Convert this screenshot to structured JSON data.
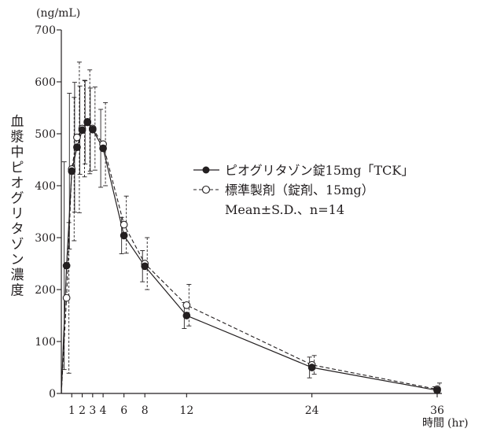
{
  "chart_data": {
    "type": "line",
    "ylabel": "血漿中ピオグリタゾン濃度",
    "y_unit": "(ng/mL)",
    "xlabel": "時間",
    "x_unit": "(hr)",
    "xlim": [
      0,
      36
    ],
    "ylim": [
      0,
      700
    ],
    "x_ticks": [
      1,
      2,
      3,
      4,
      6,
      8,
      12,
      24,
      36
    ],
    "y_ticks": [
      0,
      100,
      200,
      300,
      400,
      500,
      600,
      700
    ],
    "grid": false,
    "legend_position": "right",
    "legend_note": "Mean±S.D.、n=14",
    "series": [
      {
        "name": "ピオグリタゾン錠15mg「TCK」",
        "style": "solid",
        "marker": "filled-circle",
        "color": "#231f20",
        "x": [
          0,
          0.5,
          1,
          1.5,
          2,
          2.5,
          3,
          4,
          6,
          8,
          12,
          24,
          36
        ],
        "y": [
          0,
          246,
          428,
          474,
          507,
          522,
          508,
          472,
          304,
          245,
          150,
          50,
          6
        ],
        "sd": [
          0,
          200,
          150,
          125,
          85,
          80,
          80,
          75,
          35,
          30,
          25,
          20,
          7
        ]
      },
      {
        "name": "標準製剤（錠剤、15mg）",
        "style": "dashed",
        "marker": "open-circle",
        "color": "#231f20",
        "x": [
          0,
          0.5,
          1,
          1.5,
          2,
          2.5,
          3,
          4,
          6,
          8,
          12,
          24,
          36
        ],
        "y": [
          0,
          184,
          432,
          493,
          510,
          523,
          510,
          480,
          325,
          250,
          170,
          55,
          8
        ],
        "sd": [
          0,
          145,
          138,
          145,
          93,
          100,
          80,
          80,
          55,
          50,
          40,
          18,
          12
        ]
      }
    ]
  }
}
